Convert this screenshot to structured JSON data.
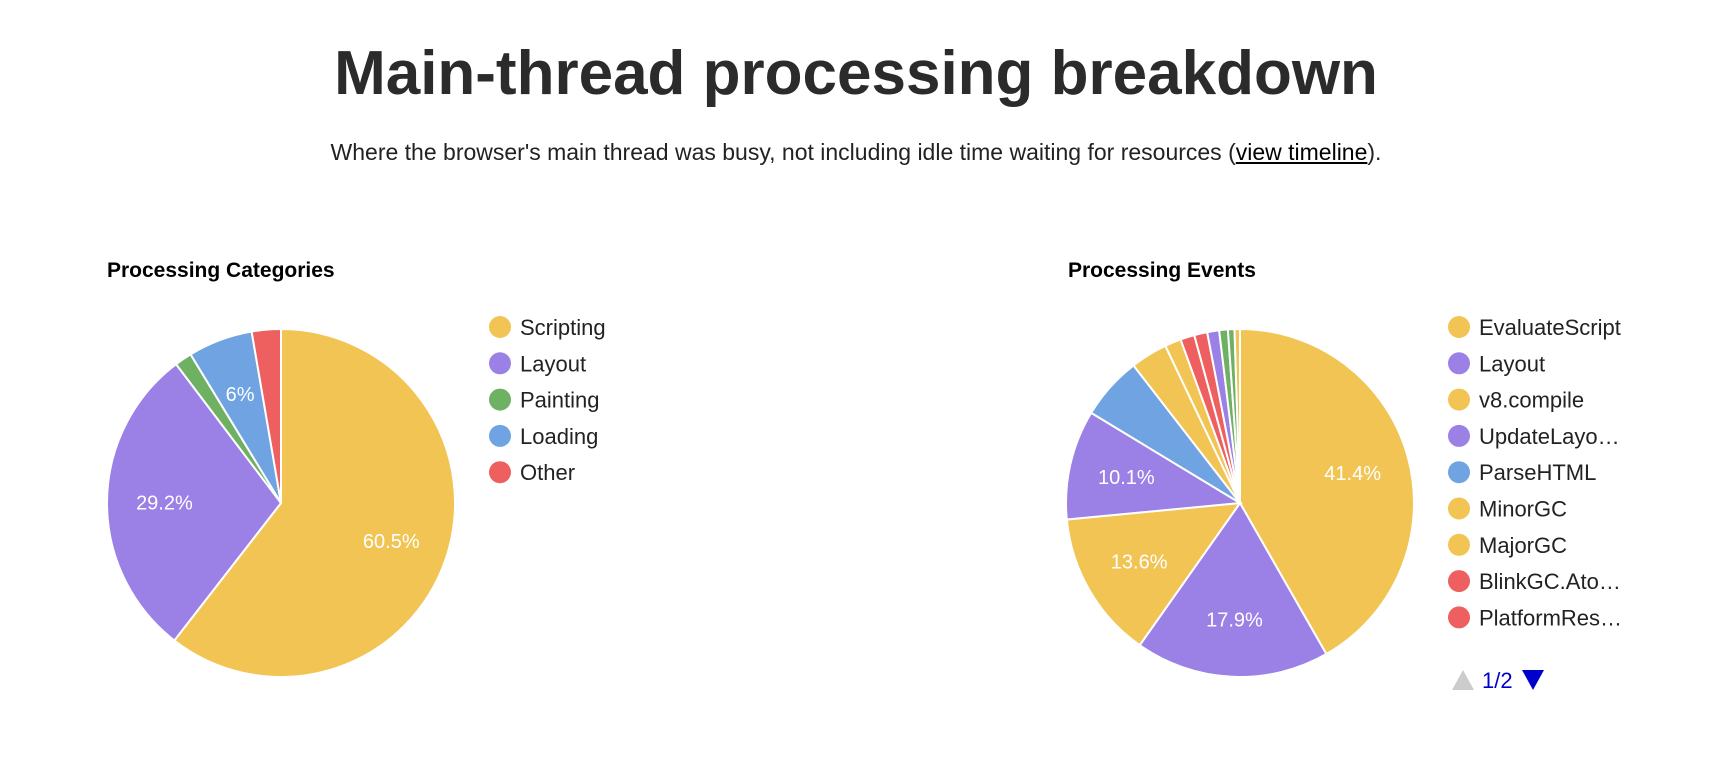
{
  "header": {
    "title": "Main-thread processing breakdown",
    "subtitle_before": "Where the browser's main thread was busy, not including idle time waiting for resources (",
    "subtitle_link": "view timeline",
    "subtitle_after": ")."
  },
  "chart_data": [
    {
      "type": "pie",
      "title": "Processing Categories",
      "legend_position": "right",
      "slices": [
        {
          "label": "Scripting",
          "value": 60.5,
          "color": "#f1c453",
          "display": "60.5%"
        },
        {
          "label": "Layout",
          "value": 29.2,
          "color": "#9b80e6",
          "display": "29.2%"
        },
        {
          "label": "Painting",
          "value": 1.6,
          "color": "#6fb162",
          "display": ""
        },
        {
          "label": "Loading",
          "value": 6.0,
          "color": "#6fa3e2",
          "display": "6%"
        },
        {
          "label": "Other",
          "value": 2.7,
          "color": "#ee5f5f",
          "display": ""
        }
      ]
    },
    {
      "type": "pie",
      "title": "Processing Events",
      "legend_position": "right",
      "pager": {
        "text": "1/2"
      },
      "slices": [
        {
          "label": "EvaluateScript",
          "value": 41.4,
          "color": "#f1c453",
          "display": "41.4%",
          "legend": true
        },
        {
          "label": "Layout",
          "value": 17.9,
          "color": "#9b80e6",
          "display": "17.9%",
          "legend": true
        },
        {
          "label": "v8.compile",
          "value": 13.6,
          "color": "#f1c453",
          "display": "13.6%",
          "legend": true
        },
        {
          "label": "UpdateLayo…",
          "value": 10.1,
          "color": "#9b80e6",
          "display": "10.1%",
          "legend": true
        },
        {
          "label": "ParseHTML",
          "value": 5.8,
          "color": "#6fa3e2",
          "display": "",
          "legend": true
        },
        {
          "label": "MinorGC",
          "value": 3.4,
          "color": "#f1c453",
          "display": "",
          "legend": true
        },
        {
          "label": "MajorGC",
          "value": 1.5,
          "color": "#f1c453",
          "display": "",
          "legend": true
        },
        {
          "label": "BlinkGC.Ato…",
          "value": 1.3,
          "color": "#ee5f5f",
          "display": "",
          "legend": true
        },
        {
          "label": "PlatformRes…",
          "value": 1.2,
          "color": "#ee5f5f",
          "display": "",
          "legend": true
        },
        {
          "label": "",
          "value": 1.1,
          "color": "#9b80e6",
          "display": "",
          "legend": false
        },
        {
          "label": "",
          "value": 0.8,
          "color": "#6fb162",
          "display": "",
          "legend": false
        },
        {
          "label": "",
          "value": 0.6,
          "color": "#6fb162",
          "display": "",
          "legend": false
        },
        {
          "label": "",
          "value": 0.5,
          "color": "#f1c453",
          "display": "",
          "legend": false
        }
      ]
    }
  ]
}
